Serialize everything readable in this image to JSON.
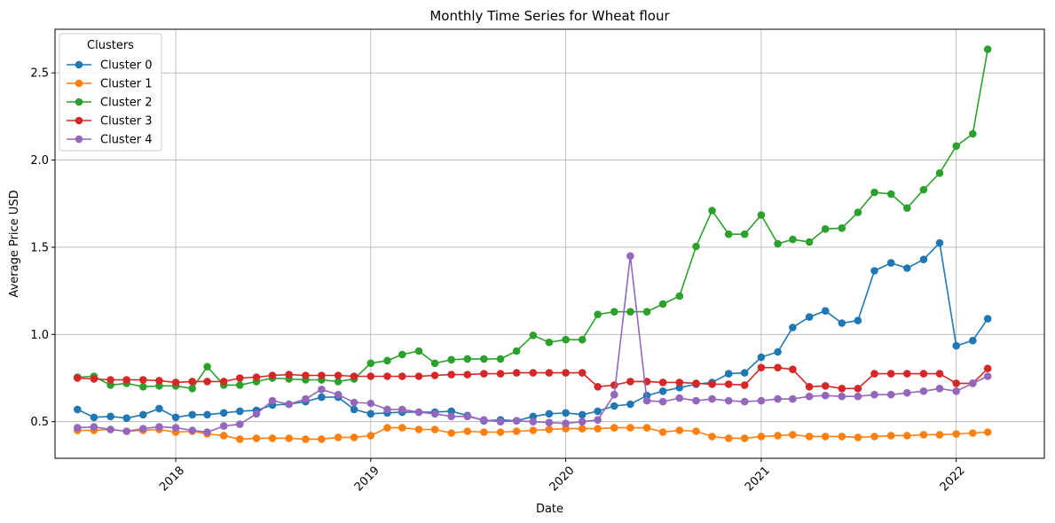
{
  "chart_data": {
    "type": "line",
    "title": "Monthly Time Series for Wheat flour",
    "xlabel": "Date",
    "ylabel": "Average Price USD",
    "xlim": [
      "2017-05-20",
      "2022-06-15"
    ],
    "ylim": [
      0.29,
      2.75
    ],
    "x_ticks": [
      "2018-01-01",
      "2019-01-01",
      "2020-01-01",
      "2021-01-01",
      "2022-01-01"
    ],
    "x_tick_labels": [
      "2018",
      "2019",
      "2020",
      "2021",
      "2022"
    ],
    "y_ticks": [
      0.5,
      1.0,
      1.5,
      2.0,
      2.5
    ],
    "y_tick_labels": [
      "0.5",
      "1.0",
      "1.5",
      "2.0",
      "2.5"
    ],
    "grid": true,
    "legend": {
      "title": "Clusters",
      "placement": "top-left"
    },
    "x": [
      "2017-07-01",
      "2017-08-01",
      "2017-09-01",
      "2017-10-01",
      "2017-11-01",
      "2017-12-01",
      "2018-01-01",
      "2018-02-01",
      "2018-03-01",
      "2018-04-01",
      "2018-05-01",
      "2018-06-01",
      "2018-07-01",
      "2018-08-01",
      "2018-09-01",
      "2018-10-01",
      "2018-11-01",
      "2018-12-01",
      "2019-01-01",
      "2019-02-01",
      "2019-03-01",
      "2019-04-01",
      "2019-05-01",
      "2019-06-01",
      "2019-07-01",
      "2019-08-01",
      "2019-09-01",
      "2019-10-01",
      "2019-11-01",
      "2019-12-01",
      "2020-01-01",
      "2020-02-01",
      "2020-03-01",
      "2020-04-01",
      "2020-05-01",
      "2020-06-01",
      "2020-07-01",
      "2020-08-01",
      "2020-09-01",
      "2020-10-01",
      "2020-11-01",
      "2020-12-01",
      "2021-01-01",
      "2021-02-01",
      "2021-03-01",
      "2021-04-01",
      "2021-05-01",
      "2021-06-01",
      "2021-07-01",
      "2021-08-01",
      "2021-09-01",
      "2021-10-01",
      "2021-11-01",
      "2021-12-01",
      "2022-01-01",
      "2022-02-01",
      "2022-03-01"
    ],
    "series": [
      {
        "name": "Cluster 0",
        "color": "#1f77b4",
        "values": [
          0.57,
          0.525,
          0.53,
          0.52,
          0.54,
          0.575,
          0.525,
          0.54,
          0.54,
          0.55,
          0.56,
          0.565,
          0.595,
          0.6,
          0.615,
          0.64,
          0.64,
          0.57,
          0.545,
          0.55,
          0.555,
          0.555,
          0.555,
          0.56,
          0.535,
          0.505,
          0.51,
          0.505,
          0.53,
          0.545,
          0.55,
          0.54,
          0.56,
          0.59,
          0.6,
          0.65,
          0.675,
          0.695,
          0.715,
          0.725,
          0.775,
          0.78,
          0.87,
          0.9,
          1.04,
          1.1,
          1.135,
          1.065,
          1.08,
          1.365,
          1.41,
          1.38,
          1.43,
          1.525,
          0.935,
          0.965,
          1.09
        ]
      },
      {
        "name": "Cluster 1",
        "color": "#ff7f0e",
        "values": [
          0.45,
          0.45,
          0.455,
          0.445,
          0.45,
          0.455,
          0.44,
          0.445,
          0.43,
          0.42,
          0.4,
          0.405,
          0.405,
          0.405,
          0.4,
          0.4,
          0.41,
          0.41,
          0.42,
          0.465,
          0.465,
          0.455,
          0.455,
          0.435,
          0.445,
          0.44,
          0.44,
          0.445,
          0.45,
          0.455,
          0.46,
          0.46,
          0.46,
          0.465,
          0.465,
          0.465,
          0.44,
          0.45,
          0.445,
          0.415,
          0.405,
          0.405,
          0.415,
          0.42,
          0.425,
          0.415,
          0.415,
          0.415,
          0.41,
          0.415,
          0.42,
          0.42,
          0.425,
          0.425,
          0.43,
          0.435,
          0.44
        ]
      },
      {
        "name": "Cluster 2",
        "color": "#2ca02c",
        "values": [
          0.755,
          0.76,
          0.71,
          0.72,
          0.7,
          0.705,
          0.705,
          0.69,
          0.815,
          0.71,
          0.71,
          0.73,
          0.75,
          0.745,
          0.74,
          0.74,
          0.73,
          0.745,
          0.835,
          0.85,
          0.885,
          0.905,
          0.835,
          0.855,
          0.86,
          0.86,
          0.86,
          0.905,
          0.995,
          0.955,
          0.97,
          0.97,
          1.115,
          1.13,
          1.13,
          1.13,
          1.175,
          1.22,
          1.505,
          1.71,
          1.575,
          1.575,
          1.685,
          1.52,
          1.545,
          1.53,
          1.605,
          1.61,
          1.7,
          1.815,
          1.805,
          1.725,
          1.83,
          1.925,
          2.08,
          2.15,
          2.635
        ]
      },
      {
        "name": "Cluster 3",
        "color": "#d62728",
        "values": [
          0.75,
          0.745,
          0.74,
          0.74,
          0.74,
          0.735,
          0.725,
          0.73,
          0.73,
          0.73,
          0.75,
          0.755,
          0.765,
          0.77,
          0.765,
          0.765,
          0.765,
          0.76,
          0.76,
          0.76,
          0.76,
          0.76,
          0.765,
          0.77,
          0.77,
          0.775,
          0.775,
          0.78,
          0.78,
          0.78,
          0.78,
          0.78,
          0.7,
          0.71,
          0.73,
          0.73,
          0.725,
          0.725,
          0.72,
          0.715,
          0.715,
          0.71,
          0.81,
          0.81,
          0.8,
          0.7,
          0.705,
          0.69,
          0.69,
          0.775,
          0.775,
          0.775,
          0.775,
          0.775,
          0.72,
          0.72,
          0.805
        ]
      },
      {
        "name": "Cluster 4",
        "color": "#9467bd",
        "values": [
          0.465,
          0.47,
          0.455,
          0.445,
          0.46,
          0.47,
          0.465,
          0.45,
          0.44,
          0.475,
          0.485,
          0.545,
          0.62,
          0.6,
          0.63,
          0.685,
          0.655,
          0.61,
          0.605,
          0.57,
          0.57,
          0.555,
          0.545,
          0.53,
          0.53,
          0.51,
          0.5,
          0.505,
          0.5,
          0.495,
          0.49,
          0.5,
          0.51,
          0.655,
          1.45,
          0.62,
          0.615,
          0.635,
          0.62,
          0.63,
          0.62,
          0.615,
          0.62,
          0.63,
          0.63,
          0.645,
          0.65,
          0.645,
          0.645,
          0.655,
          0.655,
          0.665,
          0.675,
          0.69,
          0.675,
          0.72,
          0.76
        ]
      }
    ]
  }
}
